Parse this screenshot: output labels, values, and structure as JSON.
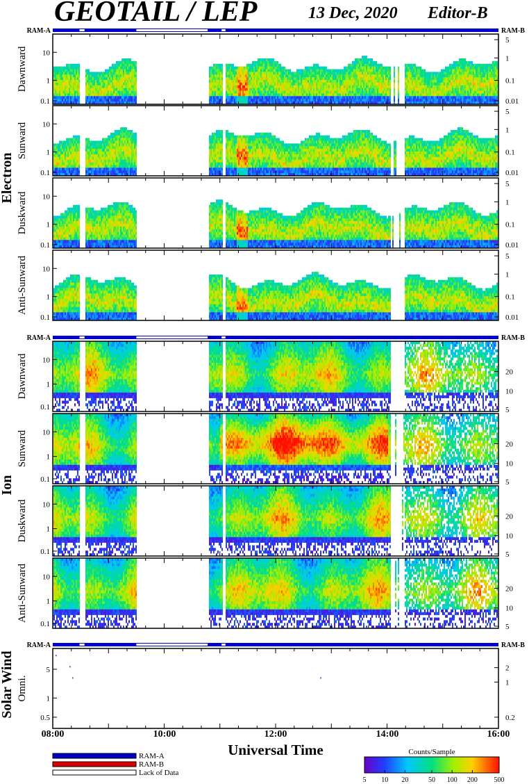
{
  "header": {
    "title": "GEOTAIL / LEP",
    "date": "13 Dec, 2020",
    "editor": "Editor-B"
  },
  "chart_data": {
    "type": "heatmap",
    "xlabel": "Universal Time",
    "x_ticks": [
      "08:00",
      "10:00",
      "12:00",
      "14:00",
      "16:00"
    ],
    "x_range_hours": [
      8,
      16
    ],
    "ram_labels": {
      "a": "RAM-A",
      "b": "RAM-B"
    },
    "gaps_hours": [
      [
        8.48,
        8.57
      ],
      [
        9.5,
        10.78
      ],
      [
        11.03,
        11.1
      ]
    ],
    "groups": [
      {
        "name": "Electron",
        "left_ticks": [
          "10",
          "1",
          "0.1"
        ],
        "right_ticks": [
          "5",
          "1",
          "0.1",
          "0.01"
        ],
        "panels": [
          {
            "label": "Dawnward"
          },
          {
            "label": "Sunward"
          },
          {
            "label": "Duskward"
          },
          {
            "label": "Anti-Sunward"
          }
        ]
      },
      {
        "name": "Ion",
        "left_ticks": [
          "10",
          "1",
          "0.1"
        ],
        "right_ticks": [
          "20",
          "10",
          "5"
        ],
        "panels": [
          {
            "label": "Dawnward"
          },
          {
            "label": "Sunward"
          },
          {
            "label": "Duskward"
          },
          {
            "label": "Anti-Sunward"
          }
        ]
      },
      {
        "name": "Solar Wind",
        "left_ticks": [
          "5",
          "1",
          "0.5"
        ],
        "right_ticks": [
          "2",
          "1",
          "0.2"
        ],
        "panels": [
          {
            "label": "Omni."
          }
        ]
      }
    ],
    "legend": {
      "items": [
        "RAM-A",
        "RAM-B",
        "Lack of Data"
      ],
      "colors": [
        "#0000cc",
        "#dd0000",
        "#ffffff"
      ]
    },
    "colorbar": {
      "title": "Counts/Sample",
      "ticks": [
        "5",
        "10",
        "20",
        "50",
        "100",
        "200",
        "500"
      ],
      "range": [
        5,
        500
      ],
      "scale": "log"
    },
    "colors": {
      "ram_bar": "#0000cc",
      "frame": "#000000"
    }
  }
}
